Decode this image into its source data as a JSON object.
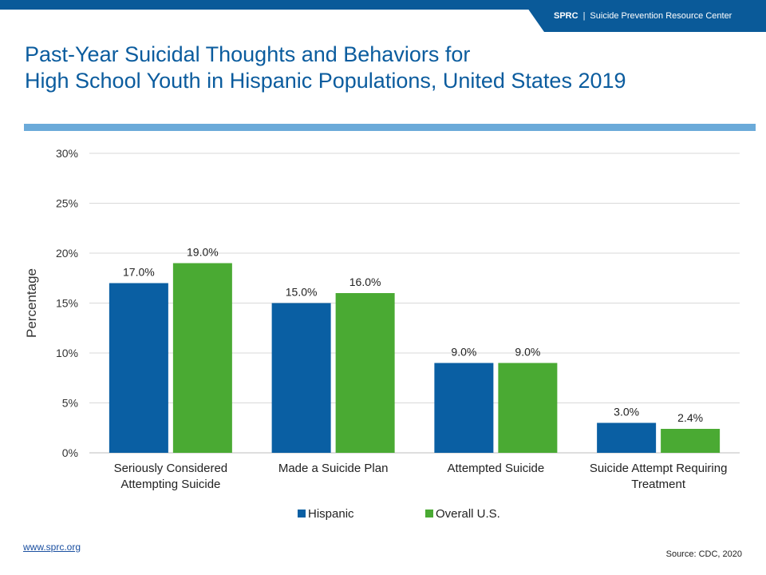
{
  "header": {
    "org_abbr": "SPRC",
    "separator": "|",
    "org_name": "Suicide Prevention Resource Center",
    "brand_color": "#0a5a99"
  },
  "title": {
    "line1": "Past-Year Suicidal Thoughts and Behaviors for",
    "line2": "High School Youth in Hispanic Populations, United States 2019"
  },
  "footer": {
    "link_text": "www.sprc.org",
    "source": "Source: CDC, 2020"
  },
  "chart_data": {
    "type": "bar",
    "ylabel": "Percentage",
    "xlabel": "",
    "ylim": [
      0,
      30
    ],
    "yticks": [
      0,
      5,
      10,
      15,
      20,
      25,
      30
    ],
    "ytick_labels": [
      "0%",
      "5%",
      "10%",
      "15%",
      "20%",
      "25%",
      "30%"
    ],
    "grid": true,
    "legend_position": "bottom-center",
    "categories": [
      [
        "Seriously Considered",
        "Attempting Suicide"
      ],
      [
        "Made a Suicide Plan"
      ],
      [
        "Attempted Suicide"
      ],
      [
        "Suicide Attempt Requiring",
        "Treatment"
      ]
    ],
    "series": [
      {
        "name": "Hispanic",
        "color": "#0a5fa3",
        "values": [
          17.0,
          15.0,
          9.0,
          3.0
        ],
        "labels": [
          "17.0%",
          "15.0%",
          "9.0%",
          "3.0%"
        ]
      },
      {
        "name": "Overall U.S.",
        "color": "#4aaa33",
        "values": [
          19.0,
          16.0,
          9.0,
          2.4
        ],
        "labels": [
          "19.0%",
          "16.0%",
          "9.0%",
          "2.4%"
        ]
      }
    ]
  }
}
